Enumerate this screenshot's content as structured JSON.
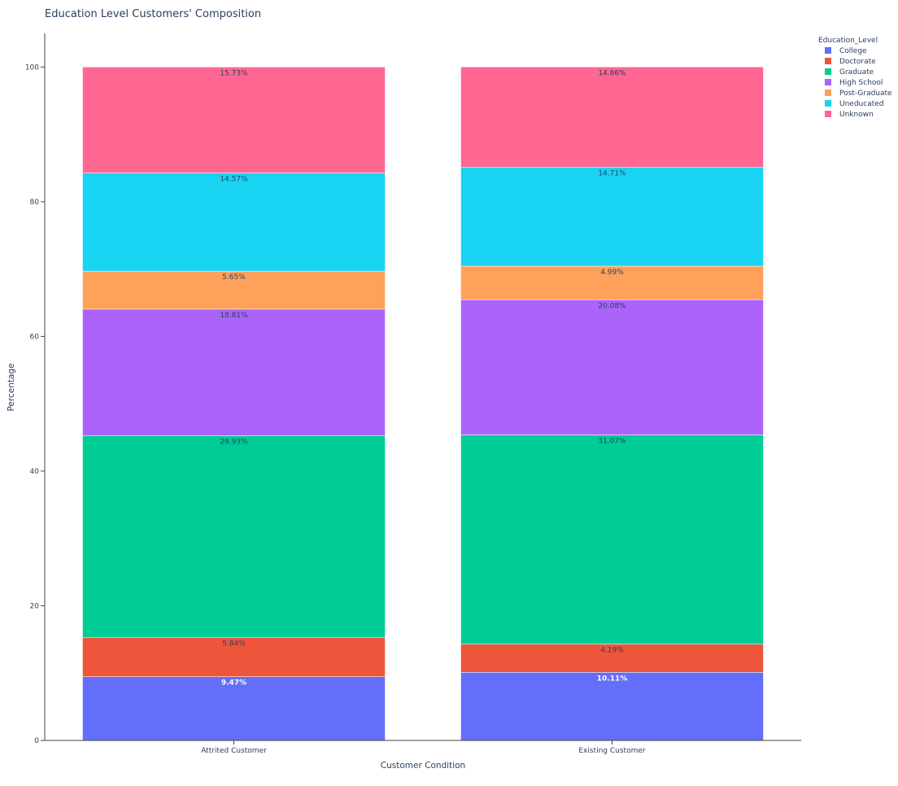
{
  "chart_data": {
    "type": "bar",
    "stacked": true,
    "title": "Education Level Customers' Composition",
    "xlabel": "Customer Condition",
    "ylabel": "Percentage",
    "ylim": [
      0,
      105
    ],
    "yticks": [
      0,
      20,
      40,
      60,
      80,
      100
    ],
    "grid": false,
    "legend_title": "Education_Level",
    "legend_position": "top-right",
    "categories": [
      "Attrited Customer",
      "Existing Customer"
    ],
    "series": [
      {
        "name": "College",
        "color": "#636efa",
        "values": [
          9.47,
          10.11
        ],
        "labels": [
          "9.47%",
          "10.11%"
        ],
        "label_color": "light"
      },
      {
        "name": "Doctorate",
        "color": "#ef553b",
        "values": [
          5.84,
          4.19
        ],
        "labels": [
          "5.84%",
          "4.19%"
        ],
        "label_color": "dark"
      },
      {
        "name": "Graduate",
        "color": "#00cc96",
        "values": [
          29.93,
          31.07
        ],
        "labels": [
          "29.93%",
          "31.07%"
        ],
        "label_color": "dark"
      },
      {
        "name": "High School",
        "color": "#ab63fa",
        "values": [
          18.81,
          20.08
        ],
        "labels": [
          "18.81%",
          "20.08%"
        ],
        "label_color": "dark"
      },
      {
        "name": "Post-Graduate",
        "color": "#ffa15a",
        "values": [
          5.65,
          4.99
        ],
        "labels": [
          "5.65%",
          "4.99%"
        ],
        "label_color": "dark"
      },
      {
        "name": "Uneducated",
        "color": "#19d3f3",
        "values": [
          14.57,
          14.71
        ],
        "labels": [
          "14.57%",
          "14.71%"
        ],
        "label_color": "dark"
      },
      {
        "name": "Unknown",
        "color": "#ff6692",
        "values": [
          15.73,
          14.86
        ],
        "labels": [
          "15.73%",
          "14.86%"
        ],
        "label_color": "dark"
      }
    ]
  }
}
